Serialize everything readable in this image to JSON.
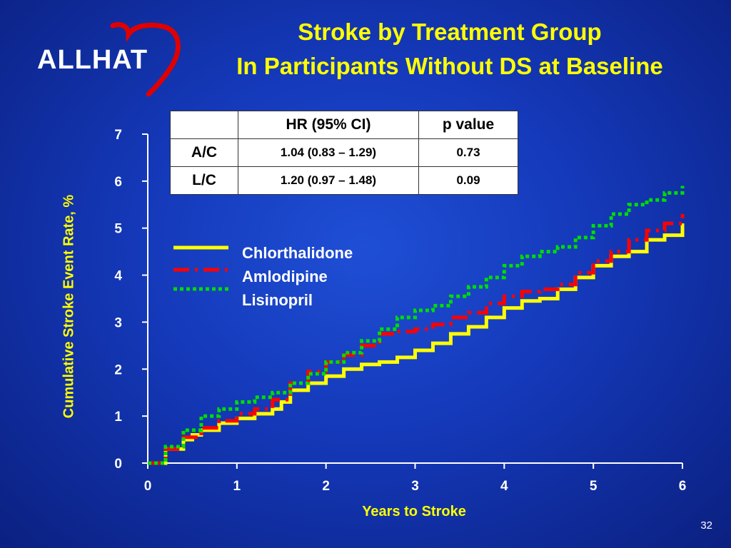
{
  "logo": {
    "text": "ALLHAT",
    "icon": "heart-outline-icon",
    "color": "#e00000"
  },
  "title": {
    "line1": "Stroke by Treatment Group",
    "line2": "In Participants Without DS at Baseline"
  },
  "hr_table": {
    "headers": [
      "",
      "HR (95% CI)",
      "p value"
    ],
    "rows": [
      {
        "label": "A/C",
        "hr": "1.04 (0.83 – 1.29)",
        "p": "0.73"
      },
      {
        "label": "L/C",
        "hr": "1.20 (0.97 – 1.48)",
        "p": "0.09"
      }
    ]
  },
  "chart_data": {
    "type": "line",
    "title": "",
    "xlabel": "Years to Stroke",
    "ylabel": "Cumulative Stroke Event Rate, %",
    "xlim": [
      0,
      6
    ],
    "ylim": [
      0,
      7
    ],
    "xticks": [
      0,
      1,
      2,
      3,
      4,
      5,
      6
    ],
    "yticks": [
      0,
      1,
      2,
      3,
      4,
      5,
      6,
      7
    ],
    "grid": false,
    "legend_placement": "center-left",
    "series": [
      {
        "name": "Chlorthalidone",
        "color": "#ffff00",
        "dash": "solid",
        "x": [
          0.0,
          0.2,
          0.4,
          0.5,
          0.6,
          0.8,
          1.0,
          1.2,
          1.4,
          1.5,
          1.6,
          1.8,
          2.0,
          2.2,
          2.4,
          2.6,
          2.8,
          3.0,
          3.2,
          3.4,
          3.6,
          3.8,
          4.0,
          4.2,
          4.4,
          4.6,
          4.8,
          5.0,
          5.2,
          5.4,
          5.6,
          5.8,
          6.0
        ],
        "y": [
          0.0,
          0.3,
          0.5,
          0.6,
          0.7,
          0.85,
          0.95,
          1.05,
          1.15,
          1.3,
          1.55,
          1.7,
          1.85,
          2.0,
          2.1,
          2.15,
          2.25,
          2.4,
          2.55,
          2.75,
          2.9,
          3.1,
          3.3,
          3.45,
          3.5,
          3.7,
          3.95,
          4.2,
          4.4,
          4.5,
          4.75,
          4.85,
          5.1
        ]
      },
      {
        "name": "Amlodipine",
        "color": "#ff0000",
        "dash": "dash-dot",
        "x": [
          0.0,
          0.2,
          0.4,
          0.6,
          0.8,
          1.0,
          1.2,
          1.4,
          1.6,
          1.8,
          2.0,
          2.2,
          2.4,
          2.6,
          2.8,
          3.0,
          3.2,
          3.4,
          3.6,
          3.8,
          4.0,
          4.2,
          4.4,
          4.6,
          4.8,
          5.0,
          5.2,
          5.4,
          5.6,
          5.8,
          6.0
        ],
        "y": [
          0.0,
          0.3,
          0.55,
          0.75,
          0.9,
          1.05,
          1.15,
          1.35,
          1.7,
          1.95,
          2.15,
          2.3,
          2.5,
          2.75,
          2.8,
          2.85,
          2.95,
          3.1,
          3.2,
          3.4,
          3.55,
          3.65,
          3.7,
          3.8,
          4.05,
          4.3,
          4.5,
          4.75,
          4.95,
          5.1,
          5.3
        ]
      },
      {
        "name": "Lisinopril",
        "color": "#00dd00",
        "dash": "dotted",
        "x": [
          0.0,
          0.2,
          0.4,
          0.6,
          0.8,
          1.0,
          1.2,
          1.4,
          1.6,
          1.8,
          2.0,
          2.2,
          2.4,
          2.6,
          2.8,
          3.0,
          3.2,
          3.4,
          3.6,
          3.8,
          4.0,
          4.2,
          4.4,
          4.6,
          4.8,
          5.0,
          5.2,
          5.4,
          5.6,
          5.8,
          6.0
        ],
        "y": [
          0.0,
          0.35,
          0.7,
          1.0,
          1.15,
          1.3,
          1.4,
          1.5,
          1.7,
          1.9,
          2.15,
          2.35,
          2.6,
          2.85,
          3.1,
          3.25,
          3.35,
          3.55,
          3.75,
          3.95,
          4.2,
          4.4,
          4.5,
          4.6,
          4.8,
          5.05,
          5.3,
          5.5,
          5.6,
          5.75,
          5.9
        ]
      }
    ]
  },
  "slide_number": "32"
}
